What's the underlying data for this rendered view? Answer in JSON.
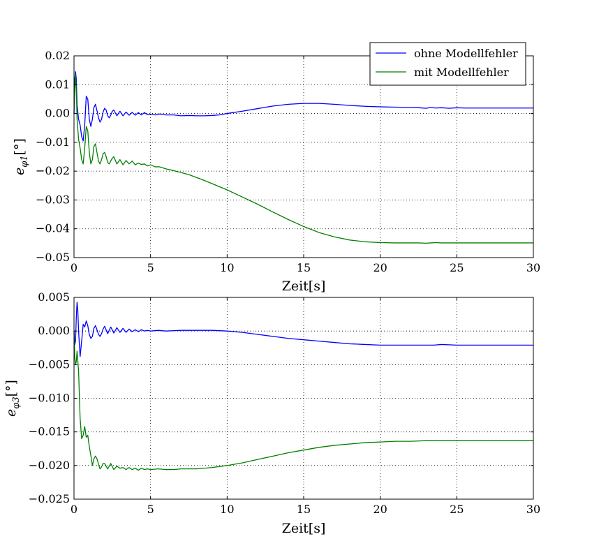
{
  "colors": {
    "blue": "#0000ff",
    "green": "#008000"
  },
  "chart_data": [
    {
      "type": "line",
      "xlabel": "Zeit[s]",
      "ylabel": "e_φ1[°]",
      "ylabel_main": "e",
      "ylabel_sub": "φ1",
      "ylabel_unit": "[°]",
      "xlim": [
        0,
        30
      ],
      "ylim": [
        -0.05,
        0.02
      ],
      "xticks": [
        0,
        5,
        10,
        15,
        20,
        25,
        30
      ],
      "xtick_labels": [
        "0",
        "5",
        "10",
        "15",
        "20",
        "25",
        "30"
      ],
      "yticks": [
        -0.05,
        -0.04,
        -0.03,
        -0.02,
        -0.01,
        0.0,
        0.01,
        0.02
      ],
      "ytick_labels": [
        "−0.05",
        "−0.04",
        "−0.03",
        "−0.02",
        "−0.01",
        "0.00",
        "0.01",
        "0.02"
      ],
      "grid": true,
      "legend": "top-right",
      "series": [
        {
          "name": "ohne Modellfehler",
          "color": "#0000ff",
          "x": [
            0,
            0.05,
            0.1,
            0.15,
            0.2,
            0.3,
            0.4,
            0.5,
            0.6,
            0.7,
            0.8,
            0.9,
            1.0,
            1.1,
            1.2,
            1.3,
            1.4,
            1.5,
            1.6,
            1.7,
            1.8,
            1.9,
            2.0,
            2.1,
            2.2,
            2.3,
            2.4,
            2.5,
            2.6,
            2.8,
            3.0,
            3.2,
            3.4,
            3.6,
            3.8,
            4.0,
            4.2,
            4.4,
            4.6,
            4.8,
            5.0,
            5.3,
            5.6,
            6,
            6.5,
            7,
            7.5,
            8,
            8.5,
            9,
            9.5,
            10,
            11,
            12,
            13,
            14,
            15,
            16,
            17,
            18,
            19,
            20,
            21,
            22,
            22.5,
            23,
            23.3,
            23.6,
            24,
            24.5,
            25,
            25.5,
            26,
            27,
            28,
            29,
            30
          ],
          "y": [
            0.0,
            0.012,
            0.0145,
            0.012,
            0.003,
            -0.002,
            -0.004,
            -0.008,
            -0.0095,
            -0.004,
            0.006,
            0.005,
            -0.002,
            -0.0045,
            -0.002,
            0.002,
            0.0032,
            0.001,
            -0.0015,
            -0.003,
            -0.002,
            0.0005,
            0.0018,
            0.0012,
            -0.0008,
            -0.0015,
            -0.0006,
            0.0008,
            0.0012,
            -0.0008,
            0.0008,
            -0.0008,
            0.0005,
            -0.0006,
            0.0004,
            -0.0006,
            0.0003,
            -0.0005,
            0.0003,
            -0.0004,
            -0.0002,
            -0.0005,
            -0.0002,
            -0.0005,
            -0.0005,
            -0.0008,
            -0.0007,
            -0.0008,
            -0.0008,
            -0.0007,
            -0.0005,
            0.0,
            0.0008,
            0.0017,
            0.0026,
            0.0032,
            0.0035,
            0.0035,
            0.0032,
            0.0028,
            0.0025,
            0.0023,
            0.0022,
            0.0021,
            0.002,
            0.0018,
            0.0021,
            0.0019,
            0.002,
            0.0018,
            0.002,
            0.0019,
            0.0019,
            0.0019,
            0.0019,
            0.0019,
            0.0019
          ]
        },
        {
          "name": "mit Modellfehler",
          "color": "#008000",
          "x": [
            0,
            0.05,
            0.1,
            0.15,
            0.2,
            0.3,
            0.4,
            0.5,
            0.6,
            0.7,
            0.8,
            0.9,
            1.0,
            1.1,
            1.2,
            1.3,
            1.4,
            1.5,
            1.6,
            1.7,
            1.8,
            1.9,
            2.0,
            2.1,
            2.2,
            2.3,
            2.4,
            2.5,
            2.6,
            2.8,
            3.0,
            3.2,
            3.4,
            3.6,
            3.8,
            4.0,
            4.2,
            4.4,
            4.6,
            4.8,
            5.0,
            5.3,
            5.6,
            6,
            6.5,
            7,
            7.5,
            8,
            8.5,
            9,
            10,
            11,
            12,
            13,
            14,
            15,
            16,
            17,
            18,
            19,
            20,
            21,
            22,
            22.5,
            23,
            23.3,
            23.6,
            24,
            24.5,
            25,
            25.5,
            26,
            27,
            28,
            29,
            30
          ],
          "y": [
            0.0,
            0.008,
            0.0135,
            0.008,
            -0.002,
            -0.009,
            -0.012,
            -0.016,
            -0.0175,
            -0.012,
            -0.0045,
            -0.006,
            -0.0135,
            -0.0175,
            -0.016,
            -0.0115,
            -0.0105,
            -0.0135,
            -0.0165,
            -0.0175,
            -0.016,
            -0.014,
            -0.0135,
            -0.015,
            -0.017,
            -0.0175,
            -0.0165,
            -0.0155,
            -0.015,
            -0.0175,
            -0.016,
            -0.0178,
            -0.0163,
            -0.0175,
            -0.0165,
            -0.0178,
            -0.0172,
            -0.0177,
            -0.0175,
            -0.0182,
            -0.0178,
            -0.0185,
            -0.0185,
            -0.0192,
            -0.0198,
            -0.0205,
            -0.0212,
            -0.0222,
            -0.0232,
            -0.0243,
            -0.0265,
            -0.029,
            -0.0315,
            -0.0342,
            -0.0368,
            -0.0392,
            -0.0413,
            -0.0428,
            -0.0439,
            -0.0445,
            -0.0448,
            -0.0449,
            -0.0449,
            -0.0449,
            -0.045,
            -0.0449,
            -0.0448,
            -0.0449,
            -0.0449,
            -0.0449,
            -0.0449,
            -0.0449,
            -0.0449,
            -0.0449,
            -0.0449,
            -0.0449
          ]
        }
      ]
    },
    {
      "type": "line",
      "xlabel": "Zeit[s]",
      "ylabel": "e_φ3[°]",
      "ylabel_main": "e",
      "ylabel_sub": "φ3",
      "ylabel_unit": "[°]",
      "xlim": [
        0,
        30
      ],
      "ylim": [
        -0.025,
        0.005
      ],
      "xticks": [
        0,
        5,
        10,
        15,
        20,
        25,
        30
      ],
      "xtick_labels": [
        "0",
        "5",
        "10",
        "15",
        "20",
        "25",
        "30"
      ],
      "yticks": [
        -0.025,
        -0.02,
        -0.015,
        -0.01,
        -0.005,
        0.0,
        0.005
      ],
      "ytick_labels": [
        "−0.025",
        "−0.020",
        "−0.015",
        "−0.010",
        "−0.005",
        "0.000",
        "0.005"
      ],
      "grid": true,
      "series": [
        {
          "name": "ohne Modellfehler",
          "color": "#0000ff",
          "x": [
            0,
            0.05,
            0.1,
            0.15,
            0.2,
            0.25,
            0.3,
            0.35,
            0.4,
            0.5,
            0.6,
            0.7,
            0.8,
            0.9,
            1.0,
            1.1,
            1.2,
            1.3,
            1.4,
            1.5,
            1.6,
            1.7,
            1.8,
            1.9,
            2.0,
            2.2,
            2.4,
            2.6,
            2.8,
            3.0,
            3.2,
            3.4,
            3.6,
            3.8,
            4.0,
            4.2,
            4.4,
            4.6,
            4.8,
            5.0,
            5.5,
            6,
            7,
            8,
            9,
            10,
            11,
            12,
            13,
            14,
            15,
            16,
            17,
            18,
            19,
            20,
            21,
            22,
            23,
            23.5,
            24,
            25,
            26,
            27,
            28,
            29,
            30
          ],
          "y": [
            0.0,
            -0.002,
            -0.0015,
            0.002,
            0.0043,
            0.003,
            0.0,
            -0.002,
            -0.0038,
            -0.0015,
            0.001,
            0.0006,
            0.0015,
            0.0008,
            -0.0005,
            -0.0011,
            -0.0008,
            0.0004,
            0.0008,
            0.0002,
            -0.0005,
            -0.0008,
            -0.0004,
            0.0003,
            0.0007,
            -0.0004,
            0.0006,
            -0.0003,
            0.0005,
            -0.0002,
            0.0004,
            -0.0002,
            0.0003,
            -0.0001,
            0.0002,
            -0.0001,
            0.0002,
            0.0,
            0.0001,
            0.0,
            0.0001,
            0.0,
            0.0001,
            0.0001,
            0.0001,
            0.0,
            -0.0002,
            -0.0005,
            -0.0008,
            -0.0011,
            -0.0013,
            -0.0015,
            -0.0017,
            -0.0019,
            -0.002,
            -0.0021,
            -0.0021,
            -0.0021,
            -0.0021,
            -0.0021,
            -0.002,
            -0.0021,
            -0.0021,
            -0.0021,
            -0.0021,
            -0.0021,
            -0.0021
          ]
        },
        {
          "name": "mit Modellfehler",
          "color": "#008000",
          "x": [
            0,
            0.05,
            0.1,
            0.15,
            0.2,
            0.3,
            0.4,
            0.5,
            0.6,
            0.7,
            0.8,
            0.9,
            1.0,
            1.1,
            1.2,
            1.3,
            1.4,
            1.5,
            1.6,
            1.7,
            1.8,
            1.9,
            2.0,
            2.2,
            2.4,
            2.6,
            2.8,
            3.0,
            3.2,
            3.4,
            3.6,
            3.8,
            4.0,
            4.2,
            4.4,
            4.6,
            4.8,
            5.0,
            5.5,
            6,
            6.5,
            7,
            8,
            9,
            10,
            11,
            12,
            13,
            14,
            15,
            16,
            17,
            18,
            19,
            20,
            21,
            22,
            23,
            23.5,
            24,
            25,
            26,
            27,
            28,
            29,
            30
          ],
          "y": [
            0.0,
            -0.004,
            -0.005,
            -0.0045,
            -0.003,
            -0.006,
            -0.013,
            -0.016,
            -0.0155,
            -0.0142,
            -0.0158,
            -0.0155,
            -0.0172,
            -0.0185,
            -0.02,
            -0.019,
            -0.0186,
            -0.019,
            -0.0198,
            -0.0205,
            -0.0202,
            -0.0197,
            -0.0197,
            -0.0205,
            -0.0197,
            -0.0206,
            -0.0201,
            -0.0204,
            -0.0203,
            -0.0206,
            -0.0203,
            -0.0206,
            -0.0204,
            -0.0207,
            -0.0204,
            -0.0206,
            -0.0205,
            -0.0206,
            -0.0205,
            -0.0206,
            -0.0206,
            -0.0205,
            -0.0205,
            -0.0203,
            -0.02,
            -0.0196,
            -0.0191,
            -0.0186,
            -0.0181,
            -0.0177,
            -0.0173,
            -0.017,
            -0.0168,
            -0.0166,
            -0.0165,
            -0.0164,
            -0.0164,
            -0.0163,
            -0.0163,
            -0.0163,
            -0.0163,
            -0.0163,
            -0.0163,
            -0.0163,
            -0.0163,
            -0.0163
          ]
        }
      ]
    }
  ]
}
